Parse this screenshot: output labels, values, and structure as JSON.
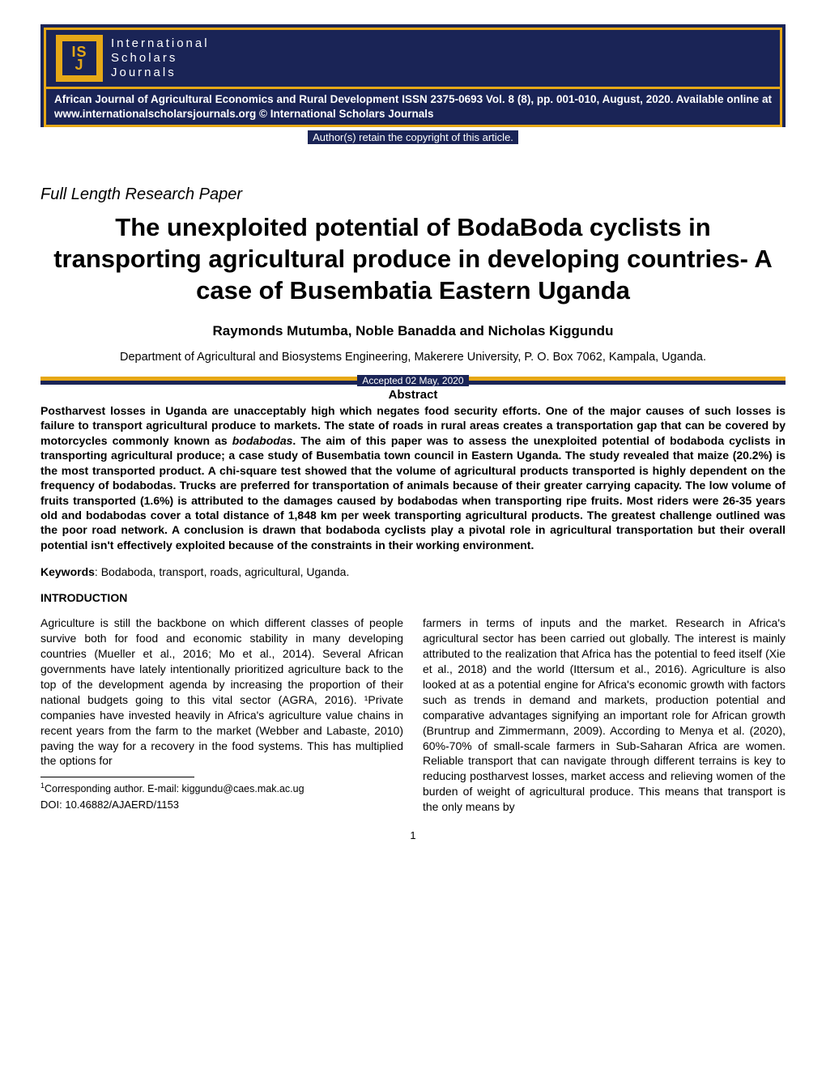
{
  "header": {
    "logo": {
      "line1_text": "IS",
      "line2_text": "J",
      "bg_color": "#e6a817",
      "inner_color": "#1a2456"
    },
    "logo_text_line1": "International",
    "logo_text_line2": "Scholars",
    "logo_text_line3": "Journals",
    "journal_info": "African Journal of Agricultural Economics and Rural Development ISSN 2375-0693 Vol. 8 (8), pp. 001-010, August, 2020. Available online at www.internationalscholarsjournals.org © International Scholars Journals",
    "copyright": "Author(s) retain the copyright of this article.",
    "colors": {
      "navy": "#1a2456",
      "gold": "#e6a817",
      "white": "#ffffff"
    }
  },
  "paper_type": "Full Length Research Paper",
  "title": "The unexploited potential of BodaBoda cyclists in transporting agricultural produce in developing countries- A case of Busembatia Eastern Uganda",
  "authors": "Raymonds Mutumba, Noble Banadda and Nicholas Kiggundu",
  "affiliation": "Department of Agricultural and Biosystems Engineering, Makerere University, P. O. Box 7062, Kampala, Uganda.",
  "accepted_date": "Accepted 02 May, 2020",
  "abstract": {
    "heading": "Abstract",
    "body_before_italic": "Postharvest losses in Uganda are unacceptably high which negates food security efforts. One of the major causes of such losses is failure to transport agricultural produce to markets. The state of roads in rural areas creates a transportation gap that can be covered by motorcycles commonly known as ",
    "italic_word": "bodabodas",
    "body_after_italic": ". The aim of this paper was to assess the unexploited potential of bodaboda cyclists in transporting agricultural produce; a case study of Busembatia town council in Eastern Uganda. The study revealed that maize (20.2%) is the most transported product. A chi-square test showed that the volume of agricultural products transported is highly dependent on the frequency of bodabodas. Trucks are preferred for transportation of animals because of their greater carrying capacity. The low volume of fruits transported (1.6%) is attributed to the damages caused by bodabodas when transporting ripe fruits. Most riders were 26-35 years old and bodabodas cover a total distance of 1,848 km per week transporting agricultural products. The greatest challenge outlined was the poor road network. A conclusion is drawn that bodaboda cyclists play a pivotal role in agricultural transportation but their overall potential isn't effectively exploited because of the constraints in their working environment."
  },
  "keywords": {
    "label": "Keywords",
    "text": ": Bodaboda, transport, roads, agricultural, Uganda."
  },
  "section_heading": "INTRODUCTION",
  "body": {
    "col1": "Agriculture is still the backbone on which different classes of people survive both for food and economic stability in many developing countries (Mueller et al., 2016; Mo et al., 2014). Several African governments have lately intentionally prioritized agriculture back to the top of the development agenda by increasing the proportion of their national budgets going to this vital sector (AGRA, 2016). ¹Private companies have invested heavily in Africa's agriculture value chains in recent years from the farm to the market (Webber and Labaste, 2010) paving the way for a recovery in the food systems. This has multiplied the options for",
    "col2": "farmers in terms of inputs and the market. Research in Africa's agricultural sector has been carried out globally. The interest is mainly attributed to the realization that Africa has the potential to feed itself (Xie et al., 2018) and the world (Ittersum et al., 2016). Agriculture is also looked at as a potential engine for Africa's economic growth with factors such as trends in demand and markets, production potential and comparative advantages signifying an important role for African growth (Bruntrup and Zimmermann, 2009). According to Menya et al. (2020), 60%-70% of small-scale farmers in Sub-Saharan Africa are women. Reliable transport that can navigate through different terrains is key to reducing postharvest losses, market access and relieving women of the burden of weight of agricultural produce. This means that transport is the only means by"
  },
  "footnote": {
    "corresponding": "Corresponding author. E-mail: kiggundu@caes.mak.ac.ug",
    "doi": "DOI: 10.46882/AJAERD/1153"
  },
  "page_number": "1",
  "typography": {
    "title_fontsize": 31,
    "body_fontsize": 14,
    "abstract_fontweight": "bold"
  }
}
